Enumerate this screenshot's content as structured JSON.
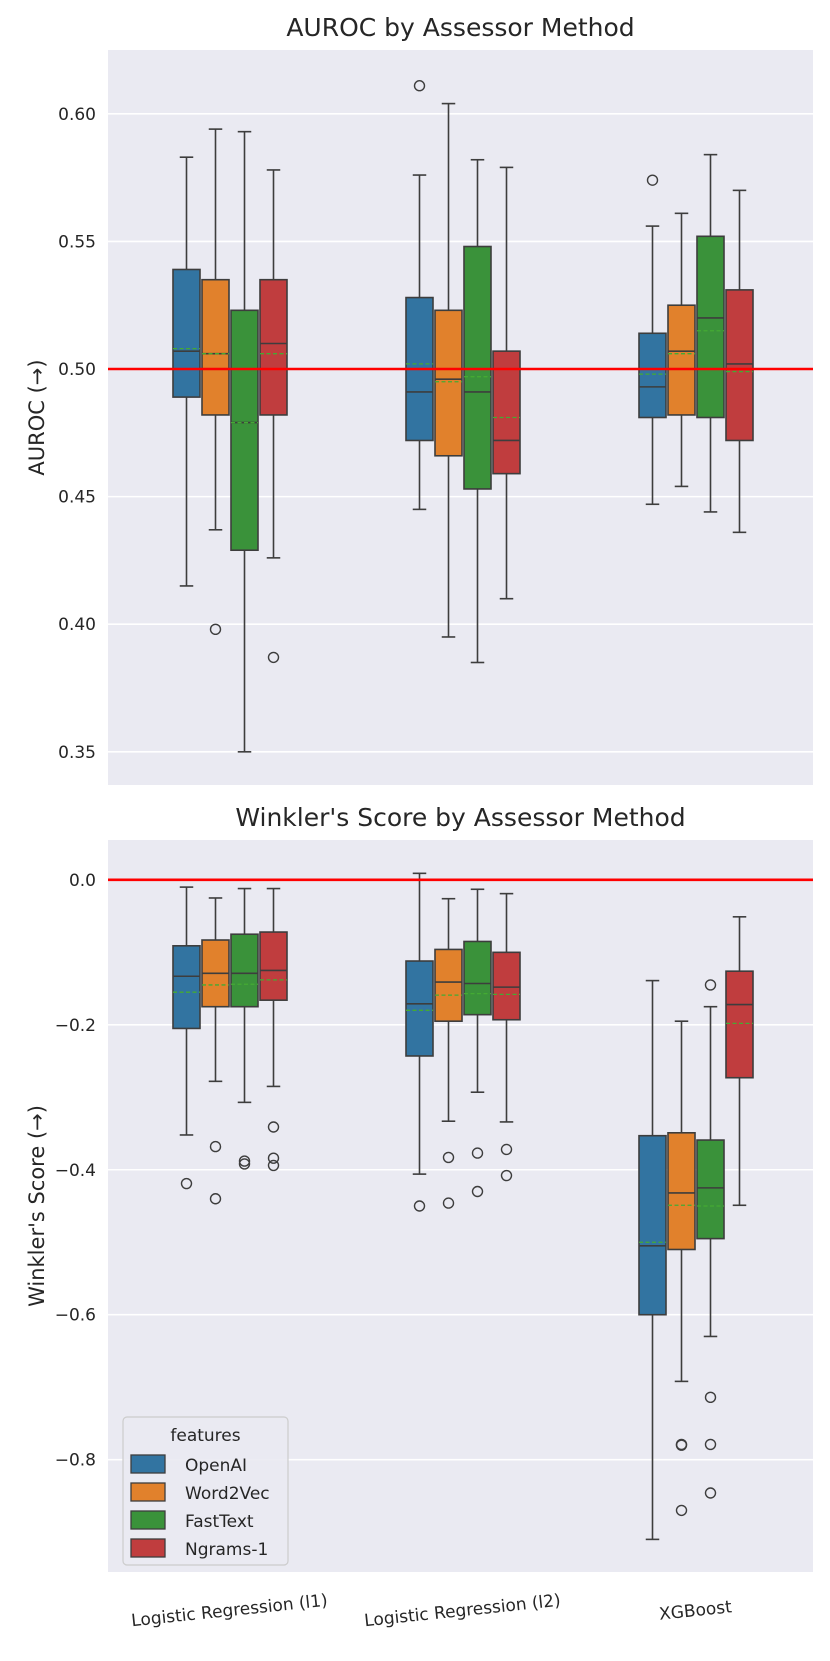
{
  "chart_data": [
    {
      "type": "box",
      "title": "AUROC by Assessor Method",
      "xlabel": "",
      "ylabel": "AUROC (→)",
      "ylim": [
        0.337,
        0.625
      ],
      "yticks": [
        0.35,
        0.4,
        0.45,
        0.5,
        0.55,
        0.6
      ],
      "ytick_labels": [
        "0.35",
        "0.40",
        "0.45",
        "0.50",
        "0.55",
        "0.60"
      ],
      "reference_line": 0.5,
      "categories": [
        "Logistic Regression (l1)",
        "Logistic Regression (l2)",
        "XGBoost"
      ],
      "series": [
        {
          "name": "OpenAI",
          "boxes": [
            {
              "whislo": 0.415,
              "q1": 0.489,
              "med": 0.507,
              "mean": 0.508,
              "q3": 0.539,
              "whishi": 0.583,
              "fliers": []
            },
            {
              "whislo": 0.445,
              "q1": 0.472,
              "med": 0.491,
              "mean": 0.502,
              "q3": 0.528,
              "whishi": 0.576,
              "fliers": [
                0.611
              ]
            },
            {
              "whislo": 0.447,
              "q1": 0.481,
              "med": 0.493,
              "mean": 0.498,
              "q3": 0.514,
              "whishi": 0.556,
              "fliers": [
                0.574
              ]
            }
          ]
        },
        {
          "name": "Word2Vec",
          "boxes": [
            {
              "whislo": 0.437,
              "q1": 0.482,
              "med": 0.506,
              "mean": 0.506,
              "q3": 0.535,
              "whishi": 0.594,
              "fliers": [
                0.398
              ]
            },
            {
              "whislo": 0.395,
              "q1": 0.466,
              "med": 0.496,
              "mean": 0.495,
              "q3": 0.523,
              "whishi": 0.604,
              "fliers": []
            },
            {
              "whislo": 0.454,
              "q1": 0.482,
              "med": 0.507,
              "mean": 0.506,
              "q3": 0.525,
              "whishi": 0.561,
              "fliers": []
            }
          ]
        },
        {
          "name": "FastText",
          "boxes": [
            {
              "whislo": 0.35,
              "q1": 0.429,
              "med": 0.479,
              "mean": 0.479,
              "q3": 0.523,
              "whishi": 0.593,
              "fliers": []
            },
            {
              "whislo": 0.385,
              "q1": 0.453,
              "med": 0.491,
              "mean": 0.497,
              "q3": 0.548,
              "whishi": 0.582,
              "fliers": []
            },
            {
              "whislo": 0.444,
              "q1": 0.481,
              "med": 0.52,
              "mean": 0.515,
              "q3": 0.552,
              "whishi": 0.584,
              "fliers": []
            }
          ]
        },
        {
          "name": "Ngrams-1",
          "boxes": [
            {
              "whislo": 0.426,
              "q1": 0.482,
              "med": 0.51,
              "mean": 0.506,
              "q3": 0.535,
              "whishi": 0.578,
              "fliers": [
                0.387
              ]
            },
            {
              "whislo": 0.41,
              "q1": 0.459,
              "med": 0.472,
              "mean": 0.481,
              "q3": 0.507,
              "whishi": 0.579,
              "fliers": []
            },
            {
              "whislo": 0.436,
              "q1": 0.472,
              "med": 0.502,
              "mean": 0.499,
              "q3": 0.531,
              "whishi": 0.57,
              "fliers": []
            }
          ]
        }
      ]
    },
    {
      "type": "box",
      "title": "Winkler's Score by Assessor Method",
      "xlabel": "",
      "ylabel": "Winkler's Score (→)",
      "ylim": [
        -0.955,
        0.055
      ],
      "yticks": [
        -0.8,
        -0.6,
        -0.4,
        -0.2,
        0.0
      ],
      "ytick_labels": [
        "−0.8",
        "−0.6",
        "−0.4",
        "−0.2",
        "0.0"
      ],
      "reference_line": 0.0,
      "categories": [
        "Logistic Regression (l1)",
        "Logistic Regression (l2)",
        "XGBoost"
      ],
      "series": [
        {
          "name": "OpenAI",
          "boxes": [
            {
              "whislo": -0.352,
              "q1": -0.205,
              "med": -0.133,
              "mean": -0.155,
              "q3": -0.091,
              "whishi": -0.01,
              "fliers": [
                -0.419
              ]
            },
            {
              "whislo": -0.406,
              "q1": -0.243,
              "med": -0.171,
              "mean": -0.18,
              "q3": -0.112,
              "whishi": 0.009,
              "fliers": [
                -0.45
              ]
            },
            {
              "whislo": -0.91,
              "q1": -0.6,
              "med": -0.505,
              "mean": -0.5,
              "q3": -0.353,
              "whishi": -0.139,
              "fliers": []
            }
          ]
        },
        {
          "name": "Word2Vec",
          "boxes": [
            {
              "whislo": -0.278,
              "q1": -0.175,
              "med": -0.129,
              "mean": -0.145,
              "q3": -0.083,
              "whishi": -0.025,
              "fliers": [
                -0.368,
                -0.44
              ]
            },
            {
              "whislo": -0.333,
              "q1": -0.195,
              "med": -0.141,
              "mean": -0.159,
              "q3": -0.096,
              "whishi": -0.026,
              "fliers": [
                -0.383,
                -0.446
              ]
            },
            {
              "whislo": -0.692,
              "q1": -0.51,
              "med": -0.432,
              "mean": -0.449,
              "q3": -0.349,
              "whishi": -0.195,
              "fliers": [
                -0.779,
                -0.78,
                -0.87
              ]
            }
          ]
        },
        {
          "name": "FastText",
          "boxes": [
            {
              "whislo": -0.307,
              "q1": -0.175,
              "med": -0.129,
              "mean": -0.144,
              "q3": -0.075,
              "whishi": -0.012,
              "fliers": [
                -0.388,
                -0.392
              ]
            },
            {
              "whislo": -0.293,
              "q1": -0.186,
              "med": -0.143,
              "mean": -0.157,
              "q3": -0.085,
              "whishi": -0.013,
              "fliers": [
                -0.377,
                -0.43
              ]
            },
            {
              "whislo": -0.63,
              "q1": -0.495,
              "med": -0.425,
              "mean": -0.45,
              "q3": -0.359,
              "whishi": -0.175,
              "fliers": [
                -0.145,
                -0.714,
                -0.779,
                -0.846
              ]
            }
          ]
        },
        {
          "name": "Ngrams-1",
          "boxes": [
            {
              "whislo": -0.285,
              "q1": -0.166,
              "med": -0.125,
              "mean": -0.138,
              "q3": -0.072,
              "whishi": -0.012,
              "fliers": [
                -0.341,
                -0.384,
                -0.394
              ]
            },
            {
              "whislo": -0.334,
              "q1": -0.193,
              "med": -0.148,
              "mean": -0.158,
              "q3": -0.1,
              "whishi": -0.019,
              "fliers": [
                -0.372,
                -0.408
              ]
            },
            {
              "whislo": -0.449,
              "q1": -0.273,
              "med": -0.172,
              "mean": -0.198,
              "q3": -0.126,
              "whishi": -0.051,
              "fliers": []
            }
          ]
        }
      ]
    }
  ],
  "legend": {
    "title": "features",
    "entries": [
      "OpenAI",
      "Word2Vec",
      "FastText",
      "Ngrams-1"
    ],
    "placement": "lower-left"
  },
  "colors": {
    "series": [
      "#3274a1",
      "#e1812c",
      "#3a923a",
      "#c03d3e"
    ],
    "plot_bg": "#eaeaf2",
    "grid": "#ffffff",
    "reference_line": "#ff0000",
    "mean_line": "#44aa33",
    "edge": "#3d3d3d"
  }
}
